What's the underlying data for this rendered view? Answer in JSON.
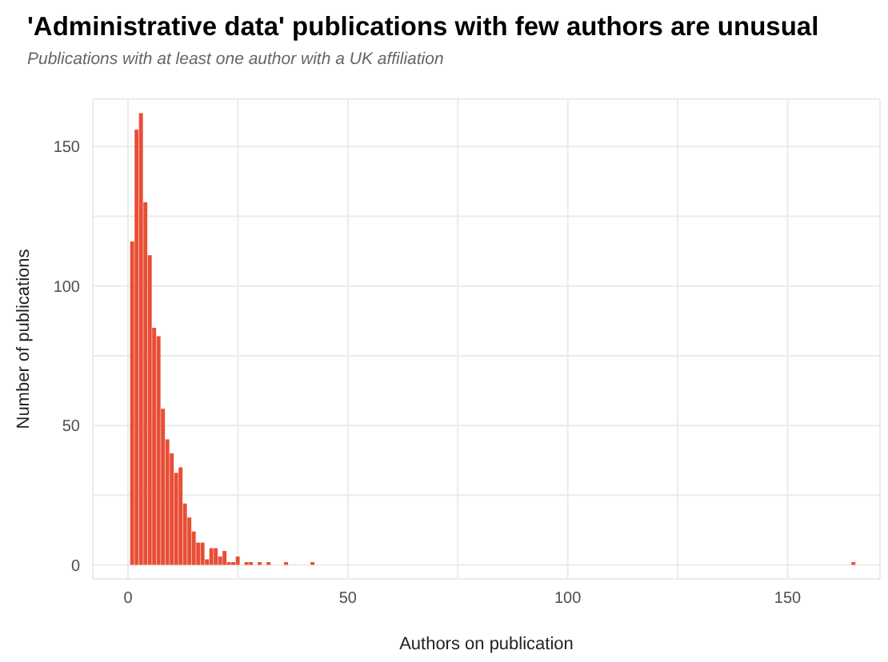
{
  "chart_data": {
    "type": "bar",
    "title": "'Administrative data' publications with few authors are unusual",
    "subtitle": "Publications with at least one author with a UK affiliation",
    "xlabel": "Authors on publication",
    "ylabel": "Number of publications",
    "color": "#e84e36",
    "x": [
      1,
      2,
      3,
      4,
      5,
      6,
      7,
      8,
      9,
      10,
      11,
      12,
      13,
      14,
      15,
      16,
      17,
      18,
      19,
      20,
      21,
      22,
      23,
      24,
      25,
      27,
      28,
      30,
      32,
      36,
      42,
      165
    ],
    "values": [
      116,
      156,
      162,
      130,
      111,
      85,
      82,
      56,
      45,
      40,
      33,
      35,
      22,
      17,
      12,
      8,
      8,
      2,
      6,
      6,
      3,
      5,
      1,
      1,
      3,
      1,
      1,
      1,
      1,
      1,
      1,
      1
    ],
    "xlim": [
      -8,
      171
    ],
    "xticks": [
      0,
      {
        "value": 25,
        "label": null
      },
      50,
      {
        "value": 75,
        "label": null
      },
      100,
      {
        "value": 125,
        "label": null
      },
      150
    ],
    "ylim": [
      -5,
      167
    ],
    "yticks": [
      0,
      {
        "value": 25,
        "label": null
      },
      50,
      {
        "value": 75,
        "label": null
      },
      100,
      {
        "value": 125,
        "label": null
      },
      150
    ],
    "grid": true
  }
}
